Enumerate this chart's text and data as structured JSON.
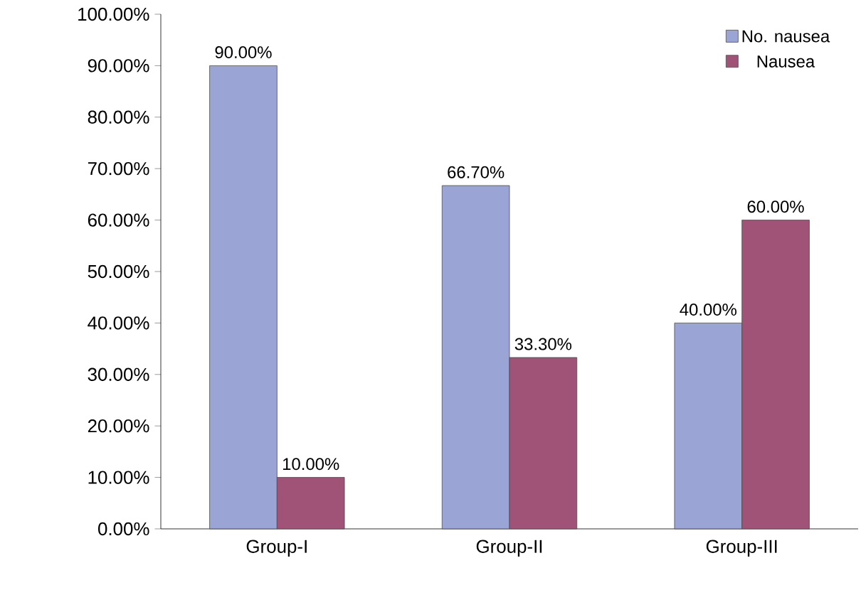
{
  "chart_data": {
    "type": "bar",
    "categories": [
      "Group-I",
      "Group-II",
      "Group-III"
    ],
    "series": [
      {
        "name": "No. nausea",
        "color": "#9aa5d5",
        "values": [
          90,
          66.7,
          40
        ],
        "value_labels": [
          "90.00%",
          "66.70%",
          "40.00%"
        ]
      },
      {
        "name": "Nausea",
        "color": "#a05277",
        "values": [
          10,
          33.3,
          60
        ],
        "value_labels": [
          "10.00%",
          "33.30%",
          "60.00%"
        ]
      }
    ],
    "ylim": [
      0,
      100
    ],
    "yticks": [
      {
        "value": 0,
        "label": "0.00%"
      },
      {
        "value": 10,
        "label": "10.00%"
      },
      {
        "value": 20,
        "label": "20.00%"
      },
      {
        "value": 30,
        "label": "30.00%"
      },
      {
        "value": 40,
        "label": "40.00%"
      },
      {
        "value": 50,
        "label": "50.00%"
      },
      {
        "value": 60,
        "label": "60.00%"
      },
      {
        "value": 70,
        "label": "70.00%"
      },
      {
        "value": 80,
        "label": "80.00%"
      },
      {
        "value": 90,
        "label": "90.00%"
      },
      {
        "value": 100,
        "label": "100.00%"
      }
    ],
    "grid": false,
    "legend": "top right"
  }
}
